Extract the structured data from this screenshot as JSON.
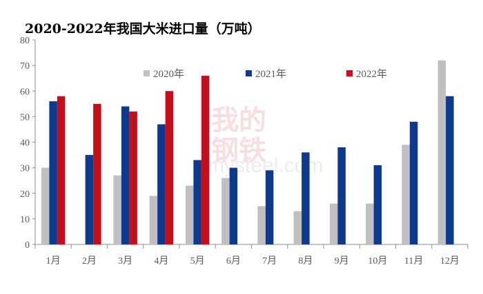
{
  "chart_data": {
    "type": "bar",
    "title": "2020-2022年我国大米进口量（万吨）",
    "categories": [
      "1月",
      "2月",
      "3月",
      "4月",
      "5月",
      "6月",
      "7月",
      "8月",
      "9月",
      "10月",
      "11月",
      "12月"
    ],
    "series": [
      {
        "name": "2020年",
        "values": [
          30,
          null,
          27,
          19,
          23,
          26,
          15,
          13,
          16,
          16,
          39,
          72
        ]
      },
      {
        "name": "2021年",
        "values": [
          56,
          35,
          54,
          47,
          33,
          30,
          29,
          36,
          38,
          31,
          48,
          58
        ]
      },
      {
        "name": "2022年",
        "values": [
          58,
          55,
          52,
          60,
          66,
          null,
          null,
          null,
          null,
          null,
          null,
          null
        ]
      }
    ],
    "ylim": [
      0,
      80
    ],
    "yticks": [
      0,
      10,
      20,
      30,
      40,
      50,
      60,
      70,
      80
    ],
    "grid": false,
    "legend": "top-center"
  },
  "colors": {
    "series": [
      "#c0c0c0",
      "#0d3a8c",
      "#c40e1c"
    ],
    "title": "#17306b",
    "axis": "#8c8c8c",
    "text": "#595959"
  },
  "watermark": {
    "text1": "我的",
    "text2": "钢铁",
    "text3": "mysteel.com"
  }
}
